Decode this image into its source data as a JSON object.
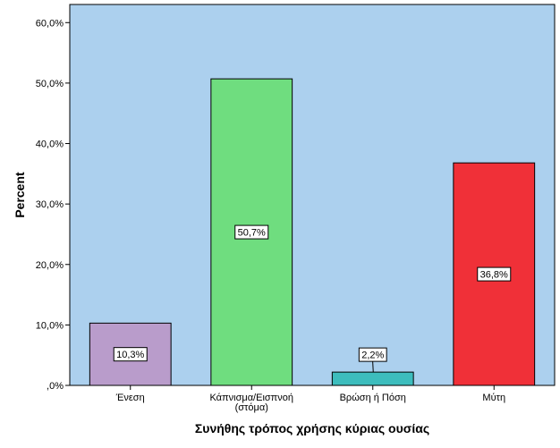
{
  "colors": {
    "plot_background": "#acd0ee",
    "axis": "#000000",
    "label_box_fill": "#ffffff",
    "bar_outline": "#000000"
  },
  "chart_data": {
    "type": "bar",
    "title": "",
    "xlabel": "Συνήθης τρόπος χρήσης κύριας ουσίας",
    "ylabel": "Percent",
    "ylim": [
      0,
      63
    ],
    "yticks": [
      0,
      10,
      20,
      30,
      40,
      50,
      60
    ],
    "ytick_labels": [
      ",0%",
      "10,0%",
      "20,0%",
      "30,0%",
      "40,0%",
      "50,0%",
      "60,0%"
    ],
    "grid": false,
    "legend": "none",
    "categories": [
      [
        "Ένεση"
      ],
      [
        "Κάπνισμα/Εισπνοή",
        "(στόμα)"
      ],
      [
        "Βρώση ή Πόση"
      ],
      [
        "Μύτη"
      ]
    ],
    "values": [
      10.3,
      50.7,
      2.2,
      36.8
    ],
    "data_labels": [
      "10,3%",
      "50,7%",
      "2,2%",
      "36,8%"
    ],
    "bar_colors": [
      "#b99ccb",
      "#6fdd7f",
      "#3dbdbd",
      "#f03038"
    ]
  }
}
